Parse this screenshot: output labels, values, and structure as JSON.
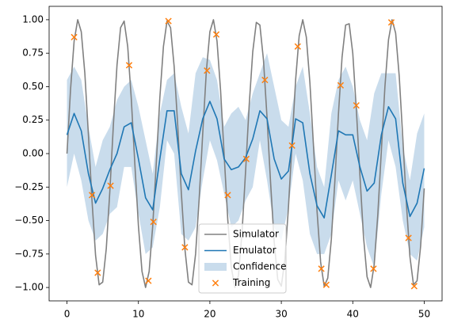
{
  "chart_data": {
    "type": "line",
    "xlim": [
      -2.5,
      52.5
    ],
    "ylim": [
      -1.1,
      1.1
    ],
    "xticks": [
      0,
      10,
      20,
      30,
      40,
      50
    ],
    "yticks": [
      {
        "value": -1,
        "label": "−1.00"
      },
      {
        "value": -0.75,
        "label": "−0.75"
      },
      {
        "value": -0.5,
        "label": "−0.50"
      },
      {
        "value": -0.25,
        "label": "−0.25"
      },
      {
        "value": 0,
        "label": "0.00"
      },
      {
        "value": 0.25,
        "label": "0.25"
      },
      {
        "value": 0.5,
        "label": "0.50"
      },
      {
        "value": 0.75,
        "label": "0.75"
      },
      {
        "value": 1,
        "label": "1.00"
      }
    ],
    "legend": "lower center",
    "series": [
      {
        "name": "Simulator",
        "kind": "line",
        "color": "#808080",
        "x": [
          0,
          0.5,
          1,
          1.5,
          2,
          2.5,
          3,
          3.5,
          4,
          4.5,
          5,
          5.5,
          6,
          6.5,
          7,
          7.5,
          8,
          8.5,
          9,
          9.5,
          10,
          10.5,
          11,
          11.5,
          12,
          12.5,
          13,
          13.5,
          14,
          14.5,
          15,
          15.5,
          16,
          16.5,
          17,
          17.5,
          18,
          18.5,
          19,
          19.5,
          20,
          20.5,
          21,
          21.5,
          22,
          22.5,
          23,
          23.5,
          24,
          24.5,
          25,
          25.5,
          26,
          26.5,
          27,
          27.5,
          28,
          28.5,
          29,
          29.5,
          30,
          30.5,
          31,
          31.5,
          32,
          32.5,
          33,
          33.5,
          34,
          34.5,
          35,
          35.5,
          36,
          36.5,
          37,
          37.5,
          38,
          38.5,
          39,
          39.5,
          40,
          40.5,
          41,
          41.5,
          42,
          42.5,
          43,
          43.5,
          44,
          44.5,
          45,
          45.5,
          46,
          46.5,
          47,
          47.5,
          48,
          48.5,
          49,
          49.5,
          50
        ],
        "values": [
          0,
          0.48,
          0.84,
          1.0,
          0.91,
          0.6,
          0.14,
          -0.35,
          -0.76,
          -0.98,
          -0.96,
          -0.71,
          -0.28,
          0.22,
          0.66,
          0.94,
          0.99,
          0.8,
          0.41,
          -0.08,
          -0.54,
          -0.88,
          -1.0,
          -0.88,
          -0.54,
          -0.07,
          0.42,
          0.8,
          0.99,
          0.94,
          0.65,
          0.21,
          -0.29,
          -0.71,
          -0.96,
          -0.98,
          -0.75,
          -0.34,
          0.15,
          0.61,
          0.91,
          1.0,
          0.84,
          0.47,
          -0.01,
          -0.49,
          -0.85,
          -1.0,
          -0.91,
          -0.59,
          -0.13,
          0.36,
          0.76,
          0.98,
          0.96,
          0.7,
          0.27,
          -0.22,
          -0.66,
          -0.94,
          -0.99,
          -0.79,
          -0.4,
          0.08,
          0.55,
          0.88,
          1.0,
          0.87,
          0.53,
          0.06,
          -0.43,
          -0.81,
          -0.99,
          -0.93,
          -0.64,
          -0.2,
          0.3,
          0.72,
          0.96,
          0.97,
          0.75,
          0.33,
          -0.16,
          -0.62,
          -0.92,
          -1.0,
          -0.83,
          -0.46,
          0.02,
          0.5,
          0.85,
          1.0,
          0.9,
          0.58,
          0.12,
          -0.37,
          -0.77,
          -0.98,
          -0.95,
          -0.69,
          -0.26
        ]
      },
      {
        "name": "Emulator",
        "kind": "line",
        "color": "#1f77b4",
        "x": [
          0,
          1,
          2,
          3,
          4,
          5,
          6,
          7,
          8,
          9,
          10,
          11,
          12,
          13,
          14,
          15,
          16,
          17,
          18,
          19,
          20,
          21,
          22,
          23,
          24,
          25,
          26,
          27,
          28,
          29,
          30,
          31,
          32,
          33,
          34,
          35,
          36,
          37,
          38,
          39,
          40,
          41,
          42,
          43,
          44,
          45,
          46,
          47,
          48,
          49,
          50
        ],
        "values": [
          0.14,
          0.3,
          0.17,
          -0.15,
          -0.37,
          -0.26,
          -0.12,
          0.0,
          0.2,
          0.23,
          -0.04,
          -0.33,
          -0.42,
          -0.04,
          0.32,
          0.32,
          -0.15,
          -0.27,
          0.02,
          0.26,
          0.39,
          0.26,
          -0.04,
          -0.12,
          -0.1,
          -0.03,
          0.11,
          0.32,
          0.26,
          -0.04,
          -0.19,
          -0.13,
          0.26,
          0.23,
          -0.15,
          -0.39,
          -0.48,
          -0.16,
          0.17,
          0.14,
          0.14,
          -0.1,
          -0.28,
          -0.22,
          0.14,
          0.35,
          0.26,
          -0.22,
          -0.47,
          -0.37,
          -0.11
        ]
      },
      {
        "name": "Confidence",
        "kind": "band",
        "color": "#c9dcec",
        "x": [
          0,
          1,
          2,
          3,
          4,
          5,
          6,
          7,
          8,
          9,
          10,
          11,
          12,
          13,
          14,
          15,
          16,
          17,
          18,
          19,
          20,
          21,
          22,
          23,
          24,
          25,
          26,
          27,
          28,
          29,
          30,
          31,
          32,
          33,
          34,
          35,
          36,
          37,
          38,
          39,
          40,
          41,
          42,
          43,
          44,
          45,
          46,
          47,
          48,
          49,
          50
        ],
        "lower": [
          -0.25,
          0.0,
          -0.2,
          -0.5,
          -0.65,
          -0.6,
          -0.45,
          -0.4,
          -0.1,
          -0.1,
          -0.45,
          -0.75,
          -0.7,
          -0.4,
          0.1,
          0.0,
          -0.6,
          -0.65,
          -0.55,
          -0.2,
          0.1,
          -0.05,
          -0.3,
          -0.55,
          -0.5,
          -0.35,
          -0.25,
          0.1,
          -0.2,
          -0.55,
          -0.65,
          -0.4,
          0.0,
          -0.2,
          -0.6,
          -0.75,
          -0.75,
          -0.6,
          -0.2,
          -0.35,
          -0.2,
          -0.45,
          -0.7,
          -0.85,
          -0.3,
          0.1,
          -0.1,
          -0.5,
          -0.75,
          -0.8,
          -0.55
        ],
        "upper": [
          0.55,
          0.65,
          0.55,
          0.2,
          -0.1,
          0.1,
          0.2,
          0.4,
          0.5,
          0.55,
          0.35,
          0.1,
          -0.15,
          0.3,
          0.55,
          0.6,
          0.35,
          0.15,
          0.6,
          0.72,
          0.7,
          0.55,
          0.2,
          0.3,
          0.35,
          0.25,
          0.45,
          0.6,
          0.75,
          0.5,
          0.25,
          0.2,
          0.5,
          0.65,
          0.3,
          -0.1,
          -0.25,
          0.3,
          0.55,
          0.65,
          0.5,
          0.25,
          0.1,
          0.45,
          0.6,
          0.6,
          0.6,
          0.05,
          -0.2,
          0.15,
          0.3
        ]
      },
      {
        "name": "Training",
        "kind": "scatter",
        "color": "#ff7f0e",
        "x": [
          1.0,
          3.5,
          4.3,
          6.1,
          8.7,
          11.4,
          12.1,
          14.2,
          16.5,
          19.6,
          20.9,
          22.5,
          25.1,
          27.7,
          31.5,
          32.3,
          35.6,
          36.3,
          38.3,
          40.5,
          42.9,
          45.4,
          47.8,
          48.6
        ],
        "values": [
          0.87,
          -0.31,
          -0.89,
          -0.24,
          0.66,
          -0.95,
          -0.51,
          0.99,
          -0.7,
          0.62,
          0.89,
          -0.31,
          -0.04,
          0.55,
          0.06,
          0.8,
          -0.86,
          -0.98,
          0.51,
          0.36,
          -0.86,
          0.98,
          -0.63,
          -0.99
        ]
      }
    ]
  }
}
